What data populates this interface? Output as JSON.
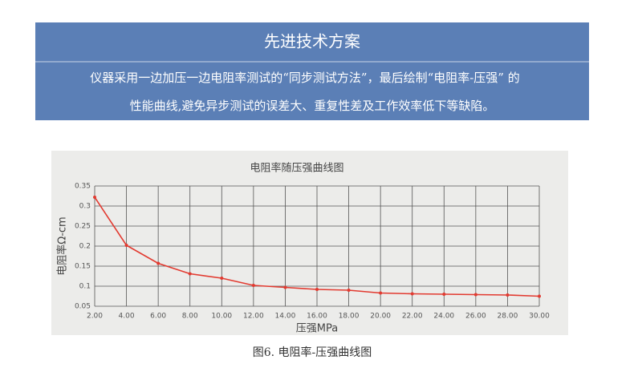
{
  "header": {
    "title": "先进技术方案",
    "lines": [
      "仪器采用一边加压一边电阻率测试的“同步测试方法”，最后绘制“电阻率-压强” 的",
      "性能曲线,避免异步测试的误差大、重复性差及工作效率低下等缺陷。"
    ]
  },
  "chart_data": {
    "type": "line",
    "title": "电阻率随压强曲线图",
    "x_label": "压强MPa",
    "y_label": "电阻率Ω-cm",
    "x": [
      2,
      4,
      6,
      8,
      10,
      12,
      14,
      16,
      18,
      20,
      22,
      24,
      26,
      28,
      30
    ],
    "values": [
      0.322,
      0.202,
      0.157,
      0.131,
      0.12,
      0.102,
      0.097,
      0.092,
      0.09,
      0.083,
      0.081,
      0.08,
      0.079,
      0.078,
      0.075
    ],
    "color": "#e23a30",
    "xlim": [
      2,
      30
    ],
    "xticks": [
      {
        "value": 2,
        "label": "2.00"
      },
      {
        "value": 4,
        "label": "4.00"
      },
      {
        "value": 6,
        "label": "6.00"
      },
      {
        "value": 8,
        "label": "8.00"
      },
      {
        "value": 10,
        "label": "10.00"
      },
      {
        "value": 12,
        "label": "12.00"
      },
      {
        "value": 14,
        "label": "14.00"
      },
      {
        "value": 16,
        "label": "16.00"
      },
      {
        "value": 18,
        "label": "18.00"
      },
      {
        "value": 20,
        "label": "20.00"
      },
      {
        "value": 22,
        "label": "22.00"
      },
      {
        "value": 24,
        "label": "24.00"
      },
      {
        "value": 26,
        "label": "26.00"
      },
      {
        "value": 28,
        "label": "28.00"
      },
      {
        "value": 30,
        "label": "30.00"
      }
    ],
    "ylim": [
      0.05,
      0.35
    ],
    "yticks": [
      0.05,
      0.1,
      0.15,
      0.2,
      0.25,
      0.3,
      0.35
    ],
    "grid": true
  },
  "caption": "图6. 电阻率-压强曲线图"
}
